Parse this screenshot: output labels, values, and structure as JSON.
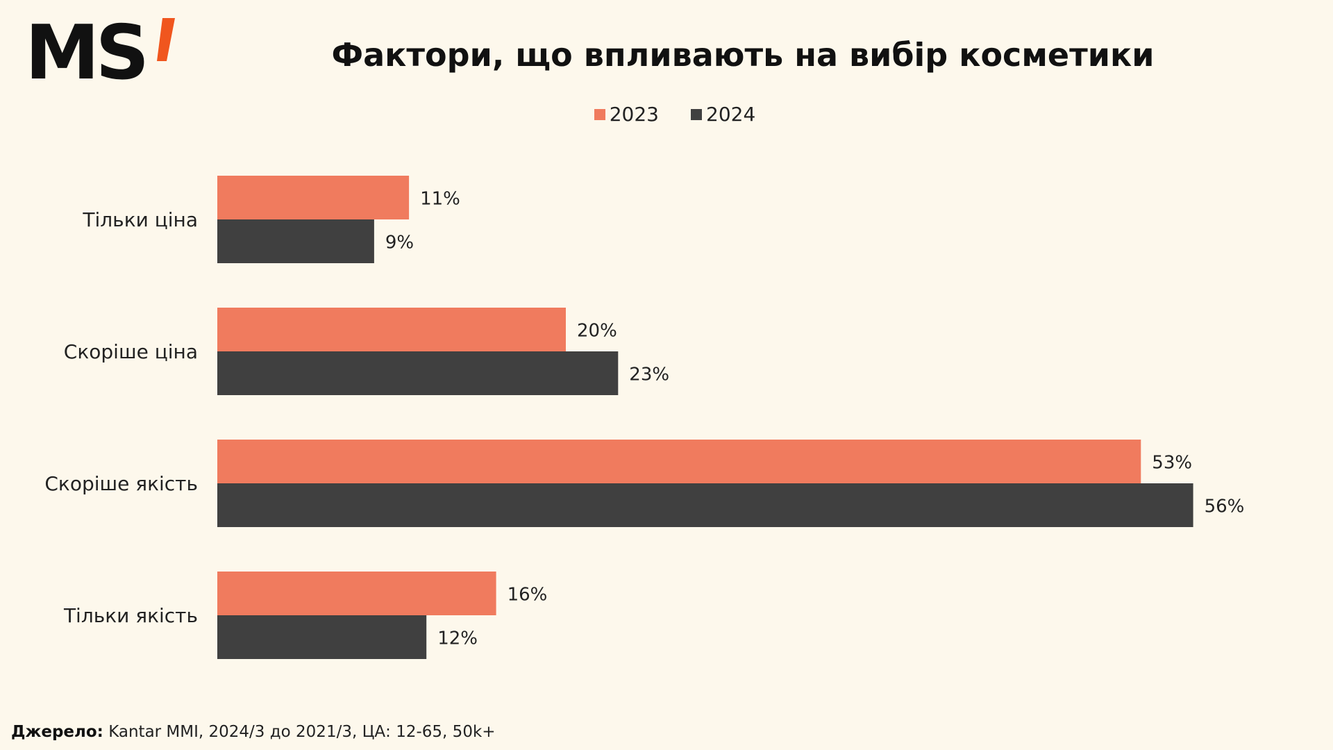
{
  "brand": {
    "logo_text": "MS",
    "accent_color": "#f0561e"
  },
  "title": "Фактори, що впливають на вибір косметики",
  "legend": [
    {
      "label": "2023",
      "color": "#f07b5e"
    },
    {
      "label": "2024",
      "color": "#404040"
    }
  ],
  "source": {
    "label": "Джерело:",
    "text": "Kantar MMI, 2024/3 до 2021/3, ЦА: 12-65, 50k+"
  },
  "chart_data": {
    "type": "bar",
    "orientation": "horizontal",
    "title": "Фактори, що впливають на вибір косметики",
    "categories": [
      "Тільки ціна",
      "Скоріше ціна",
      "Скоріше якість",
      "Тільки якість"
    ],
    "series": [
      {
        "name": "2023",
        "values": [
          11,
          20,
          53,
          16
        ],
        "labels": [
          "11%",
          "20%",
          "53%",
          "16%"
        ],
        "color": "#f07b5e"
      },
      {
        "name": "2024",
        "values": [
          9,
          23,
          56,
          12
        ],
        "labels": [
          "9%",
          "23%",
          "56%",
          "12%"
        ],
        "color": "#404040"
      }
    ],
    "unit": "%",
    "grid": false,
    "legend_position": "top-center"
  }
}
